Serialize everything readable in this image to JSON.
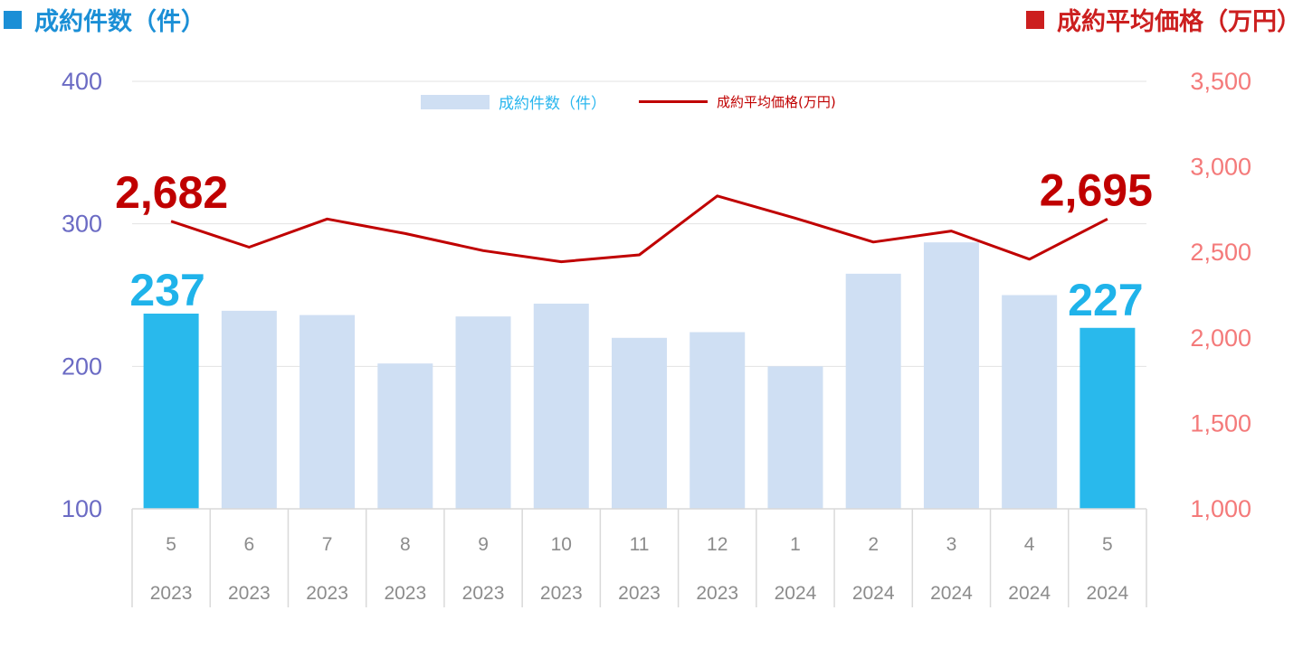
{
  "header": {
    "left_title": "成約件数（件）",
    "right_title": "成約平均価格（万円）"
  },
  "legend": {
    "bar_label": "成約件数（件）",
    "line_label": "成約平均価格(万円)"
  },
  "colors": {
    "bar": "#cfdff3",
    "bar_highlight": "#29b9ec",
    "line": "#c00000",
    "left_axis": "#6b6bc4",
    "right_axis": "#f47a7a",
    "header_left": "#1b8fd6",
    "header_right": "#cc1f1f"
  },
  "chart_data": {
    "type": "bar+line",
    "months": [
      "5",
      "6",
      "7",
      "8",
      "9",
      "10",
      "11",
      "12",
      "1",
      "2",
      "3",
      "4",
      "5"
    ],
    "years": [
      "2023",
      "2023",
      "2023",
      "2023",
      "2023",
      "2023",
      "2023",
      "2023",
      "2024",
      "2024",
      "2024",
      "2024",
      "2024"
    ],
    "series": [
      {
        "name": "成約件数（件）",
        "type": "bar",
        "axis": "left",
        "values": [
          237,
          239,
          236,
          202,
          235,
          244,
          220,
          224,
          200,
          265,
          287,
          250,
          227
        ],
        "highlighted_indices": [
          0,
          12
        ]
      },
      {
        "name": "成約平均価格(万円)",
        "type": "line",
        "axis": "right",
        "values": [
          2682,
          2530,
          2695,
          2610,
          2510,
          2445,
          2485,
          2830,
          2700,
          2560,
          2625,
          2460,
          2695
        ]
      }
    ],
    "left_axis": {
      "ylim": [
        100,
        400
      ],
      "ticks": [
        "100",
        "200",
        "300",
        "400"
      ]
    },
    "right_axis": {
      "ylim": [
        1000,
        3500
      ],
      "ticks": [
        "1,000",
        "1,500",
        "2,000",
        "2,500",
        "3,000",
        "3,500"
      ]
    },
    "callouts": {
      "first_bar": "237",
      "last_bar": "227",
      "first_line": "2,682",
      "last_line": "2,695"
    },
    "gridlines": true,
    "legend_position": "top-center"
  }
}
